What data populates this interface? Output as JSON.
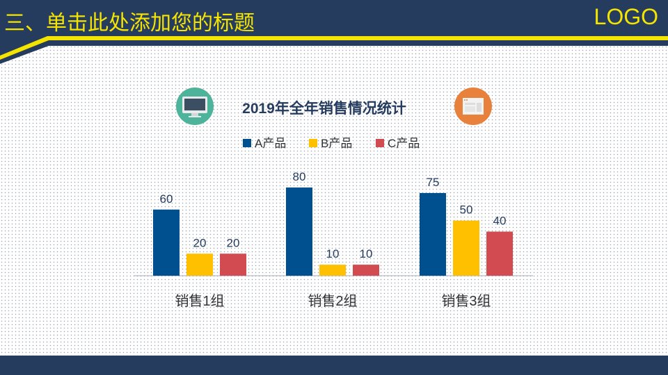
{
  "header": {
    "title": "三、单击此处添加您的标题",
    "logo": "LOGO"
  },
  "icons": {
    "left": "monitor-icon",
    "right": "browser-window-icon"
  },
  "colors": {
    "navy": "#253c5f",
    "yellow": "#f5e400",
    "A": "#00508f",
    "B": "#ffc000",
    "C": "#d24b50"
  },
  "chart_data": {
    "type": "bar",
    "title": "2019年全年销售情况统计",
    "categories": [
      "销售1组",
      "销售2组",
      "销售3组"
    ],
    "series": [
      {
        "name": "A产品",
        "values": [
          60,
          80,
          75
        ]
      },
      {
        "name": "B产品",
        "values": [
          20,
          10,
          50
        ]
      },
      {
        "name": "C产品",
        "values": [
          20,
          10,
          40
        ]
      }
    ],
    "legend": "top",
    "ylim": [
      0,
      80
    ],
    "grid": false
  }
}
